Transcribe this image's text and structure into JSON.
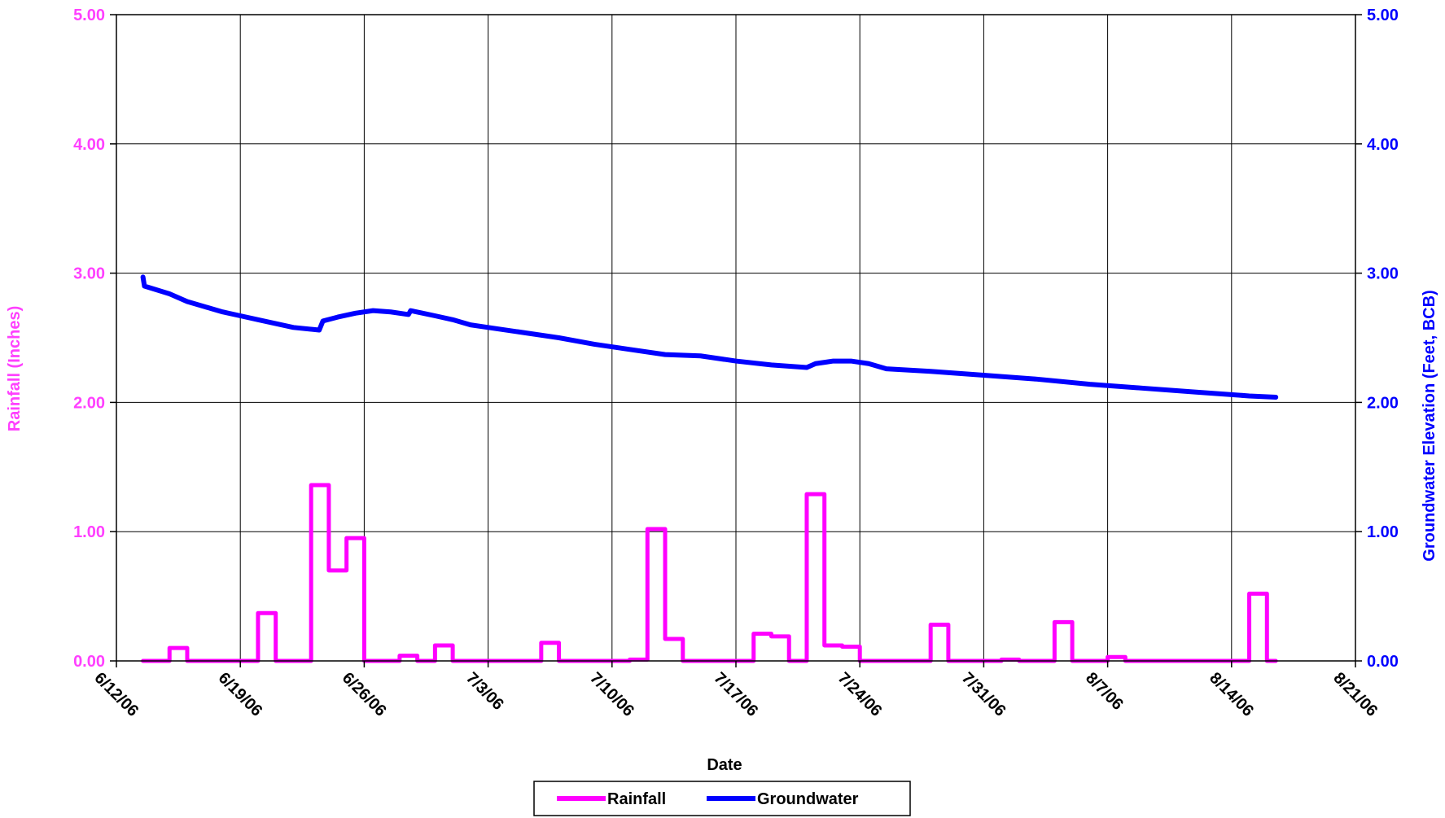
{
  "chart_data": {
    "type": "line",
    "xlabel": "Date",
    "ylabel_left": "Rainfall (Inches)",
    "ylabel_right": "Groundwater Elevation (Feet, BCB)",
    "x_range": [
      "2006-06-12",
      "2006-08-21"
    ],
    "x_tick_dates": [
      "2006-06-12",
      "2006-06-19",
      "2006-06-26",
      "2006-07-03",
      "2006-07-10",
      "2006-07-17",
      "2006-07-24",
      "2006-07-31",
      "2006-08-07",
      "2006-08-14",
      "2006-08-21"
    ],
    "x_tick_labels": [
      "6/12/06",
      "6/19/06",
      "6/26/06",
      "7/3/06",
      "7/10/06",
      "7/17/06",
      "7/24/06",
      "7/31/06",
      "8/7/06",
      "8/14/06",
      "8/21/06"
    ],
    "y_left_range": [
      0,
      5
    ],
    "y_left_ticks": [
      "0.00",
      "1.00",
      "2.00",
      "3.00",
      "4.00",
      "5.00"
    ],
    "y_right_range": [
      0,
      5
    ],
    "y_right_ticks": [
      "0.00",
      "1.00",
      "2.00",
      "3.00",
      "4.00",
      "5.00"
    ],
    "grid": true,
    "legend_position": "bottom-center",
    "series": [
      {
        "name": "Rainfall",
        "axis": "left",
        "color": "#ff00ff",
        "style": "step",
        "points": [
          [
            "2006-06-13T12:00",
            0.0
          ],
          [
            "2006-06-15T00:00",
            0.0
          ],
          [
            "2006-06-15T00:00",
            0.1
          ],
          [
            "2006-06-16T00:00",
            0.1
          ],
          [
            "2006-06-16T00:00",
            0.0
          ],
          [
            "2006-06-20T00:00",
            0.0
          ],
          [
            "2006-06-20T00:00",
            0.37
          ],
          [
            "2006-06-21T00:00",
            0.37
          ],
          [
            "2006-06-21T00:00",
            0.0
          ],
          [
            "2006-06-23T00:00",
            0.0
          ],
          [
            "2006-06-23T00:00",
            1.36
          ],
          [
            "2006-06-24T00:00",
            1.36
          ],
          [
            "2006-06-24T00:00",
            0.7
          ],
          [
            "2006-06-25T00:00",
            0.7
          ],
          [
            "2006-06-25T00:00",
            0.95
          ],
          [
            "2006-06-26T00:00",
            0.95
          ],
          [
            "2006-06-26T00:00",
            0.0
          ],
          [
            "2006-06-28T00:00",
            0.0
          ],
          [
            "2006-06-28T00:00",
            0.04
          ],
          [
            "2006-06-29T00:00",
            0.04
          ],
          [
            "2006-06-29T00:00",
            0.0
          ],
          [
            "2006-06-30T00:00",
            0.0
          ],
          [
            "2006-06-30T00:00",
            0.12
          ],
          [
            "2006-07-01T00:00",
            0.12
          ],
          [
            "2006-07-01T00:00",
            0.0
          ],
          [
            "2006-07-06T00:00",
            0.0
          ],
          [
            "2006-07-06T00:00",
            0.14
          ],
          [
            "2006-07-07T00:00",
            0.14
          ],
          [
            "2006-07-07T00:00",
            0.0
          ],
          [
            "2006-07-11T00:00",
            0.0
          ],
          [
            "2006-07-11T00:00",
            0.01
          ],
          [
            "2006-07-12T00:00",
            0.01
          ],
          [
            "2006-07-12T00:00",
            1.02
          ],
          [
            "2006-07-13T00:00",
            1.02
          ],
          [
            "2006-07-13T00:00",
            0.17
          ],
          [
            "2006-07-14T00:00",
            0.17
          ],
          [
            "2006-07-14T00:00",
            0.0
          ],
          [
            "2006-07-18T00:00",
            0.0
          ],
          [
            "2006-07-18T00:00",
            0.21
          ],
          [
            "2006-07-19T00:00",
            0.21
          ],
          [
            "2006-07-19T00:00",
            0.19
          ],
          [
            "2006-07-20T00:00",
            0.19
          ],
          [
            "2006-07-20T00:00",
            0.0
          ],
          [
            "2006-07-21T00:00",
            0.0
          ],
          [
            "2006-07-21T00:00",
            1.29
          ],
          [
            "2006-07-22T00:00",
            1.29
          ],
          [
            "2006-07-22T00:00",
            0.12
          ],
          [
            "2006-07-23T00:00",
            0.12
          ],
          [
            "2006-07-23T00:00",
            0.11
          ],
          [
            "2006-07-24T00:00",
            0.11
          ],
          [
            "2006-07-24T00:00",
            0.0
          ],
          [
            "2006-07-28T00:00",
            0.0
          ],
          [
            "2006-07-28T00:00",
            0.28
          ],
          [
            "2006-07-29T00:00",
            0.28
          ],
          [
            "2006-07-29T00:00",
            0.0
          ],
          [
            "2006-08-01T00:00",
            0.0
          ],
          [
            "2006-08-01T00:00",
            0.01
          ],
          [
            "2006-08-02T00:00",
            0.01
          ],
          [
            "2006-08-02T00:00",
            0.0
          ],
          [
            "2006-08-04T00:00",
            0.0
          ],
          [
            "2006-08-04T00:00",
            0.3
          ],
          [
            "2006-08-05T00:00",
            0.3
          ],
          [
            "2006-08-05T00:00",
            0.0
          ],
          [
            "2006-08-07T00:00",
            0.0
          ],
          [
            "2006-08-07T00:00",
            0.03
          ],
          [
            "2006-08-08T00:00",
            0.03
          ],
          [
            "2006-08-08T00:00",
            0.0
          ],
          [
            "2006-08-15T00:00",
            0.0
          ],
          [
            "2006-08-15T00:00",
            0.52
          ],
          [
            "2006-08-16T00:00",
            0.52
          ],
          [
            "2006-08-16T00:00",
            0.0
          ],
          [
            "2006-08-16T12:00",
            0.0
          ]
        ]
      },
      {
        "name": "Groundwater",
        "axis": "right",
        "color": "#0000ff",
        "style": "line",
        "points": [
          [
            "2006-06-13T12:00",
            2.97
          ],
          [
            "2006-06-13T14:00",
            2.9
          ],
          [
            "2006-06-15T00:00",
            2.84
          ],
          [
            "2006-06-16T00:00",
            2.78
          ],
          [
            "2006-06-17T00:00",
            2.74
          ],
          [
            "2006-06-18T00:00",
            2.7
          ],
          [
            "2006-06-19T00:00",
            2.67
          ],
          [
            "2006-06-20T00:00",
            2.64
          ],
          [
            "2006-06-21T00:00",
            2.61
          ],
          [
            "2006-06-22T00:00",
            2.58
          ],
          [
            "2006-06-23T11:00",
            2.56
          ],
          [
            "2006-06-23T16:00",
            2.63
          ],
          [
            "2006-06-24T12:00",
            2.66
          ],
          [
            "2006-06-25T12:00",
            2.69
          ],
          [
            "2006-06-26T12:00",
            2.71
          ],
          [
            "2006-06-27T12:00",
            2.7
          ],
          [
            "2006-06-28T12:00",
            2.68
          ],
          [
            "2006-06-28T15:00",
            2.71
          ],
          [
            "2006-06-30T00:00",
            2.67
          ],
          [
            "2006-07-01T00:00",
            2.64
          ],
          [
            "2006-07-02T00:00",
            2.6
          ],
          [
            "2006-07-03T00:00",
            2.58
          ],
          [
            "2006-07-05T00:00",
            2.54
          ],
          [
            "2006-07-07T00:00",
            2.5
          ],
          [
            "2006-07-09T00:00",
            2.45
          ],
          [
            "2006-07-11T00:00",
            2.41
          ],
          [
            "2006-07-13T00:00",
            2.37
          ],
          [
            "2006-07-15T00:00",
            2.36
          ],
          [
            "2006-07-17T00:00",
            2.32
          ],
          [
            "2006-07-19T00:00",
            2.29
          ],
          [
            "2006-07-21T00:00",
            2.27
          ],
          [
            "2006-07-21T12:00",
            2.3
          ],
          [
            "2006-07-22T12:00",
            2.32
          ],
          [
            "2006-07-23T12:00",
            2.32
          ],
          [
            "2006-07-24T12:00",
            2.3
          ],
          [
            "2006-07-25T12:00",
            2.26
          ],
          [
            "2006-07-28T00:00",
            2.24
          ],
          [
            "2006-07-31T00:00",
            2.21
          ],
          [
            "2006-08-03T00:00",
            2.18
          ],
          [
            "2006-08-06T00:00",
            2.14
          ],
          [
            "2006-08-09T00:00",
            2.11
          ],
          [
            "2006-08-12T00:00",
            2.08
          ],
          [
            "2006-08-15T00:00",
            2.05
          ],
          [
            "2006-08-16T12:00",
            2.04
          ]
        ]
      }
    ]
  }
}
